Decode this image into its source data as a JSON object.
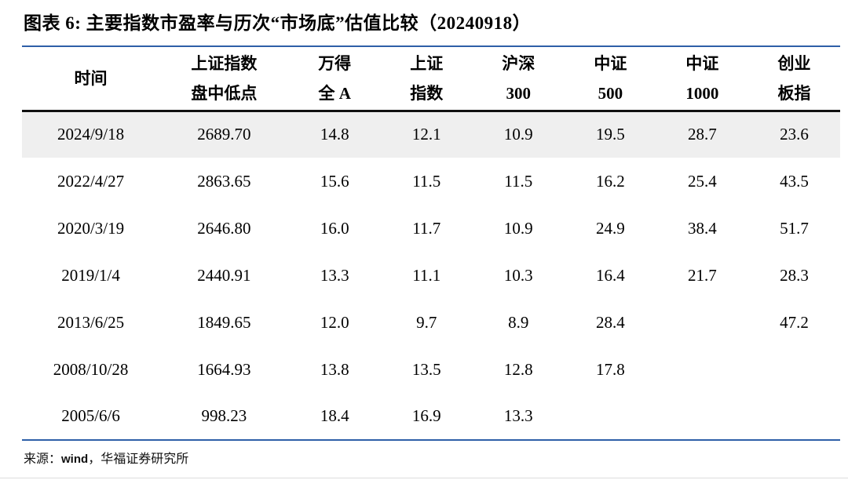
{
  "title": "图表 6:  主要指数市盈率与历次“市场底”估值比较（20240918）",
  "table": {
    "columns": [
      {
        "line1": "时间",
        "line2": ""
      },
      {
        "line1": "上证指数",
        "line2": "盘中低点"
      },
      {
        "line1": "万得",
        "line2": "全 A"
      },
      {
        "line1": "上证",
        "line2": "指数"
      },
      {
        "line1": "沪深",
        "line2": "300"
      },
      {
        "line1": "中证",
        "line2": "500"
      },
      {
        "line1": "中证",
        "line2": "1000"
      },
      {
        "line1": "创业",
        "line2": "板指"
      }
    ],
    "rows": [
      {
        "date": "2024/9/18",
        "values": [
          "2689.70",
          "14.8",
          "12.1",
          "10.9",
          "19.5",
          "28.7",
          "23.6"
        ],
        "highlight": true
      },
      {
        "date": "2022/4/27",
        "values": [
          "2863.65",
          "15.6",
          "11.5",
          "11.5",
          "16.2",
          "25.4",
          "43.5"
        ],
        "highlight": false
      },
      {
        "date": "2020/3/19",
        "values": [
          "2646.80",
          "16.0",
          "11.7",
          "10.9",
          "24.9",
          "38.4",
          "51.7"
        ],
        "highlight": false
      },
      {
        "date": "2019/1/4",
        "values": [
          "2440.91",
          "13.3",
          "11.1",
          "10.3",
          "16.4",
          "21.7",
          "28.3"
        ],
        "highlight": false
      },
      {
        "date": "2013/6/25",
        "values": [
          "1849.65",
          "12.0",
          "9.7",
          "8.9",
          "28.4",
          "",
          "47.2"
        ],
        "highlight": false
      },
      {
        "date": "2008/10/28",
        "values": [
          "1664.93",
          "13.8",
          "13.5",
          "12.8",
          "17.8",
          "",
          ""
        ],
        "highlight": false
      },
      {
        "date": "2005/6/6",
        "values": [
          "998.23",
          "18.4",
          "16.9",
          "13.3",
          "",
          "",
          ""
        ],
        "highlight": false
      }
    ]
  },
  "footer": {
    "prefix": "来源：",
    "source": "wind",
    "suffix": "，华福证券研究所"
  },
  "colors": {
    "accent_blue": "#2E5FA8",
    "header_rule_black": "#111111",
    "highlight_row_bg": "#EFEFEF",
    "text": "#000000",
    "bottom_rule": "#DDDDDD"
  }
}
